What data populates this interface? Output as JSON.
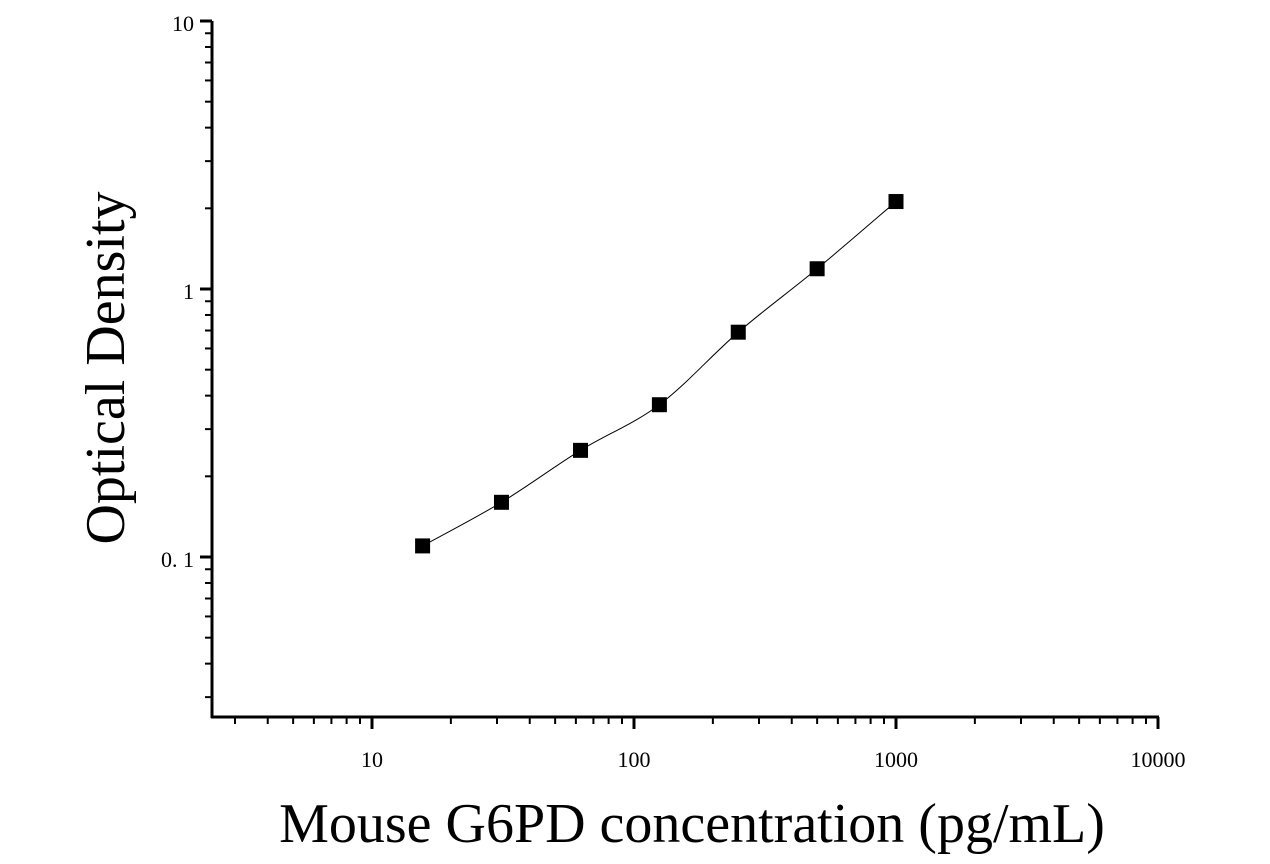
{
  "chart_data": {
    "type": "scatter",
    "title": "",
    "xlabel": "Mouse G6PD concentration (pg/mL)",
    "ylabel": "Optical Density",
    "x_scale": "log",
    "y_scale": "log",
    "xlim": [
      2.5,
      10000
    ],
    "ylim": [
      0.03,
      10
    ],
    "x_ticks": [
      10,
      100,
      1000,
      10000
    ],
    "x_tick_labels": [
      "10",
      "100",
      "1000",
      "10000"
    ],
    "y_ticks": [
      0.1,
      1,
      10
    ],
    "y_tick_labels": [
      "0. 1",
      "1",
      "10"
    ],
    "grid": false,
    "legend": "none",
    "marker": "square",
    "colors": {
      "axis": "#000000",
      "marker": "#000000",
      "curve": "#000000"
    },
    "series": [
      {
        "x": [
          15.6,
          31.2,
          62.5,
          125,
          250,
          500,
          1000
        ],
        "y": [
          0.11,
          0.16,
          0.25,
          0.37,
          0.69,
          1.19,
          2.12
        ]
      }
    ],
    "fit_curve": {
      "x": [
        15.6,
        31.2,
        62.5,
        125,
        250,
        500,
        1000
      ],
      "y": [
        0.11,
        0.16,
        0.25,
        0.37,
        0.69,
        1.19,
        2.12
      ]
    }
  }
}
